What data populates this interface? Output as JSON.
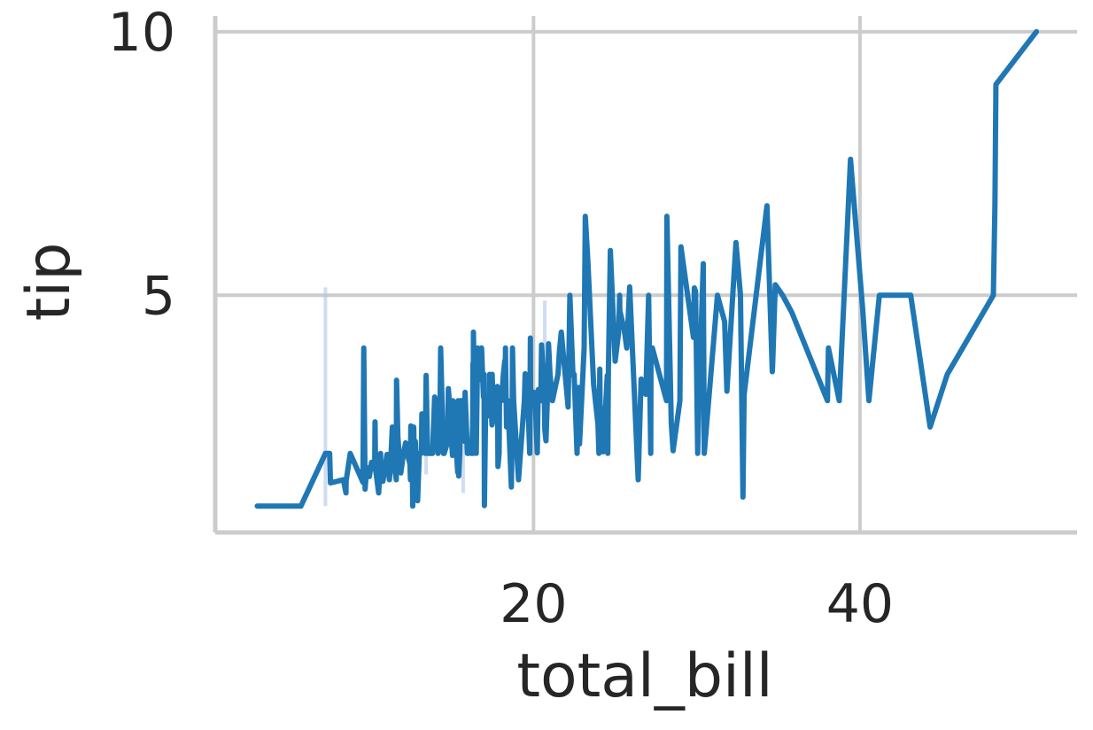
{
  "chart_data": {
    "type": "line",
    "xlabel": "total_bill",
    "ylabel": "tip",
    "x_ticks": [
      20,
      40
    ],
    "y_ticks": [
      5,
      10
    ],
    "xlim": [
      0.5,
      53.3
    ],
    "ylim": [
      0.5,
      10.3
    ],
    "grid": true,
    "colors": {
      "line": "#1f77b4",
      "band": "#aec7e8",
      "grid": "#cccccc",
      "spine": "#cccccc",
      "text": "#262626"
    },
    "series": [
      {
        "values": [
          [
            3.07,
            1.0
          ],
          [
            5.75,
            1.0
          ],
          [
            7.25,
            2.0
          ],
          [
            7.51,
            2.0
          ],
          [
            7.56,
            1.44
          ],
          [
            8.35,
            1.5
          ],
          [
            8.51,
            1.25
          ],
          [
            8.52,
            1.48
          ],
          [
            8.77,
            2.0
          ],
          [
            9.55,
            1.45
          ],
          [
            9.6,
            4.0
          ],
          [
            9.68,
            1.32
          ],
          [
            9.78,
            1.73
          ],
          [
            9.94,
            1.56
          ],
          [
            10.07,
            1.83
          ],
          [
            10.27,
            1.71
          ],
          [
            10.29,
            2.6
          ],
          [
            10.33,
            1.67
          ],
          [
            10.34,
            1.66
          ],
          [
            10.51,
            1.25
          ],
          [
            10.59,
            1.61
          ],
          [
            10.63,
            2.0
          ],
          [
            10.65,
            1.5
          ],
          [
            10.77,
            1.47
          ],
          [
            11.02,
            1.98
          ],
          [
            11.17,
            1.5
          ],
          [
            11.24,
            1.76
          ],
          [
            11.35,
            2.5
          ],
          [
            11.38,
            2.0
          ],
          [
            11.59,
            1.5
          ],
          [
            11.61,
            3.39
          ],
          [
            11.69,
            2.31
          ],
          [
            11.87,
            1.63
          ],
          [
            12.02,
            1.97
          ],
          [
            12.16,
            2.2
          ],
          [
            12.26,
            2.0
          ],
          [
            12.43,
            1.8
          ],
          [
            12.46,
            1.5
          ],
          [
            12.48,
            2.52
          ],
          [
            12.54,
            2.5
          ],
          [
            12.6,
            1.0
          ],
          [
            12.66,
            2.5
          ],
          [
            12.69,
            2.0
          ],
          [
            12.74,
            2.01
          ],
          [
            12.76,
            2.23
          ],
          [
            12.9,
            1.1
          ],
          [
            13.0,
            2.0
          ],
          [
            13.03,
            2.0
          ],
          [
            13.13,
            2.0
          ],
          [
            13.16,
            2.75
          ],
          [
            13.27,
            2.5
          ],
          [
            13.28,
            2.72
          ],
          [
            13.37,
            2.0
          ],
          [
            13.39,
            2.61
          ],
          [
            13.42,
            3.48
          ],
          [
            13.51,
            2.0
          ],
          [
            13.81,
            2.0
          ],
          [
            13.94,
            3.07
          ],
          [
            14.0,
            3.0
          ],
          [
            14.07,
            2.5
          ],
          [
            14.15,
            2.0
          ],
          [
            14.26,
            2.5
          ],
          [
            14.31,
            4.0
          ],
          [
            14.48,
            2.0
          ],
          [
            14.52,
            2.0
          ],
          [
            14.73,
            2.2
          ],
          [
            14.78,
            3.23
          ],
          [
            14.83,
            3.02
          ],
          [
            15.01,
            2.09
          ],
          [
            15.04,
            1.96
          ],
          [
            15.06,
            3.0
          ],
          [
            15.36,
            1.64
          ],
          [
            15.38,
            3.0
          ],
          [
            15.42,
            1.57
          ],
          [
            15.48,
            2.02
          ],
          [
            15.53,
            3.0
          ],
          [
            15.69,
            3.0
          ],
          [
            15.77,
            2.23
          ],
          [
            15.81,
            3.16
          ],
          [
            15.95,
            2.0
          ],
          [
            15.98,
            2.03
          ],
          [
            16.0,
            2.0
          ],
          [
            16.04,
            2.24
          ],
          [
            16.21,
            2.0
          ],
          [
            16.27,
            2.5
          ],
          [
            16.29,
            3.71
          ],
          [
            16.31,
            2.0
          ],
          [
            16.32,
            4.3
          ],
          [
            16.4,
            2.5
          ],
          [
            16.43,
            2.3
          ],
          [
            16.45,
            2.47
          ],
          [
            16.47,
            3.23
          ],
          [
            16.49,
            2.0
          ],
          [
            16.58,
            4.0
          ],
          [
            16.66,
            3.4
          ],
          [
            16.82,
            4.0
          ],
          [
            16.93,
            3.07
          ],
          [
            16.97,
            3.5
          ],
          [
            16.99,
            1.01
          ],
          [
            17.07,
            3.0
          ],
          [
            17.29,
            2.71
          ],
          [
            17.31,
            3.5
          ],
          [
            17.46,
            2.54
          ],
          [
            17.47,
            3.5
          ],
          [
            17.51,
            3.0
          ],
          [
            17.59,
            2.64
          ],
          [
            17.64,
            2.61
          ],
          [
            17.78,
            3.27
          ],
          [
            17.81,
            2.34
          ],
          [
            17.82,
            1.75
          ],
          [
            17.89,
            2.0
          ],
          [
            17.92,
            3.08
          ],
          [
            18.04,
            3.0
          ],
          [
            18.15,
            3.5
          ],
          [
            18.24,
            3.76
          ],
          [
            18.26,
            3.25
          ],
          [
            18.28,
            4.0
          ],
          [
            18.29,
            3.76
          ],
          [
            18.35,
            2.5
          ],
          [
            18.43,
            3.0
          ],
          [
            18.64,
            1.36
          ],
          [
            18.69,
            2.31
          ],
          [
            18.71,
            4.0
          ],
          [
            18.78,
            3.0
          ],
          [
            19.08,
            1.5
          ],
          [
            19.44,
            3.0
          ],
          [
            19.49,
            3.51
          ],
          [
            19.65,
            3.0
          ],
          [
            19.77,
            2.0
          ],
          [
            19.81,
            4.19
          ],
          [
            19.82,
            3.18
          ],
          [
            20.08,
            3.15
          ],
          [
            20.23,
            2.01
          ],
          [
            20.27,
            2.83
          ],
          [
            20.29,
            3.21
          ],
          [
            20.45,
            3.0
          ],
          [
            20.49,
            4.06
          ],
          [
            20.65,
            3.35
          ],
          [
            20.69,
            2.45
          ],
          [
            20.76,
            2.24
          ],
          [
            20.9,
            3.5
          ],
          [
            20.92,
            4.08
          ],
          [
            21.01,
            3.5
          ],
          [
            21.16,
            3.0
          ],
          [
            21.5,
            3.5
          ],
          [
            21.58,
            3.92
          ],
          [
            21.7,
            4.3
          ],
          [
            22.12,
            2.88
          ],
          [
            22.23,
            5.0
          ],
          [
            22.42,
            3.48
          ],
          [
            22.49,
            3.5
          ],
          [
            22.67,
            2.0
          ],
          [
            22.75,
            3.25
          ],
          [
            22.82,
            2.18
          ],
          [
            23.1,
            4.0
          ],
          [
            23.17,
            6.5
          ],
          [
            23.33,
            5.65
          ],
          [
            23.68,
            3.31
          ],
          [
            23.95,
            2.55
          ],
          [
            24.01,
            2.0
          ],
          [
            24.06,
            3.6
          ],
          [
            24.08,
            2.92
          ],
          [
            24.27,
            2.03
          ],
          [
            24.52,
            3.48
          ],
          [
            24.55,
            2.0
          ],
          [
            24.59,
            3.61
          ],
          [
            24.71,
            5.85
          ],
          [
            25.0,
            3.75
          ],
          [
            25.21,
            4.29
          ],
          [
            25.28,
            5.0
          ],
          [
            25.29,
            4.71
          ],
          [
            25.56,
            4.34
          ],
          [
            25.71,
            4.0
          ],
          [
            25.89,
            5.16
          ],
          [
            26.41,
            1.5
          ],
          [
            26.59,
            3.41
          ],
          [
            26.86,
            3.14
          ],
          [
            26.88,
            3.12
          ],
          [
            27.05,
            5.0
          ],
          [
            27.18,
            2.0
          ],
          [
            27.2,
            4.0
          ],
          [
            27.28,
            4.0
          ],
          [
            28.15,
            3.0
          ],
          [
            28.17,
            6.5
          ],
          [
            28.44,
            2.56
          ],
          [
            28.55,
            2.05
          ],
          [
            28.97,
            3.0
          ],
          [
            29.03,
            5.92
          ],
          [
            29.8,
            4.2
          ],
          [
            29.85,
            5.14
          ],
          [
            29.93,
            5.07
          ],
          [
            30.06,
            2.0
          ],
          [
            30.14,
            3.09
          ],
          [
            30.4,
            5.6
          ],
          [
            30.46,
            2.0
          ],
          [
            31.27,
            5.0
          ],
          [
            31.71,
            4.5
          ],
          [
            31.85,
            3.18
          ],
          [
            32.4,
            6.0
          ],
          [
            32.68,
            5.0
          ],
          [
            32.83,
            1.17
          ],
          [
            32.9,
            3.11
          ],
          [
            34.3,
            6.7
          ],
          [
            34.63,
            3.55
          ],
          [
            34.65,
            3.68
          ],
          [
            34.81,
            5.2
          ],
          [
            35.26,
            5.0
          ],
          [
            35.83,
            4.67
          ],
          [
            38.01,
            3.0
          ],
          [
            38.07,
            4.0
          ],
          [
            38.73,
            3.0
          ],
          [
            39.42,
            7.58
          ],
          [
            40.17,
            4.73
          ],
          [
            40.55,
            3.0
          ],
          [
            41.19,
            5.0
          ],
          [
            43.11,
            5.0
          ],
          [
            44.3,
            2.5
          ],
          [
            45.35,
            3.5
          ],
          [
            48.17,
            5.0
          ],
          [
            48.27,
            6.73
          ],
          [
            48.33,
            9.0
          ],
          [
            50.81,
            10.0
          ]
        ]
      }
    ],
    "bands": [
      [
        7.25,
        1.0,
        5.15
      ],
      [
        13.42,
        1.6,
        3.35
      ],
      [
        15.69,
        1.25,
        2.95
      ],
      [
        20.69,
        2.45,
        4.9
      ]
    ]
  }
}
